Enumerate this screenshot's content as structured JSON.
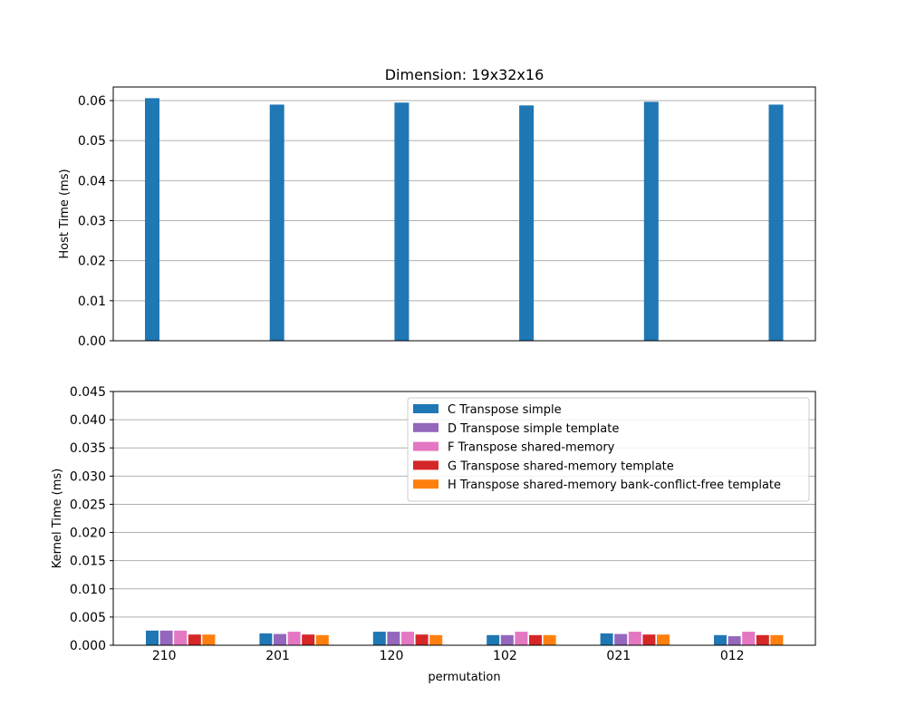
{
  "chart_data": [
    {
      "type": "bar",
      "title": "Dimension: 19x32x16",
      "xlabel": "",
      "ylabel": "Host Time (ms)",
      "ylim": [
        0,
        0.0634
      ],
      "yticks": [
        "0.00",
        "0.01",
        "0.02",
        "0.03",
        "0.04",
        "0.05",
        "0.06"
      ],
      "grid": "y",
      "categories": [
        "210",
        "201",
        "120",
        "102",
        "021",
        "012"
      ],
      "show_category_labels": false,
      "series": [
        {
          "color": "#1f77b4",
          "values": [
            0.0606,
            0.059,
            0.0595,
            0.0588,
            0.0597,
            0.059
          ]
        }
      ]
    },
    {
      "type": "bar",
      "title": "",
      "xlabel": "permutation",
      "ylabel": "Kernel Time (ms)",
      "ylim": [
        0,
        0.045
      ],
      "yticks": [
        "0.000",
        "0.005",
        "0.010",
        "0.015",
        "0.020",
        "0.025",
        "0.030",
        "0.035",
        "0.040",
        "0.045"
      ],
      "grid": "y",
      "legend": "top-right",
      "categories": [
        "210",
        "201",
        "120",
        "102",
        "021",
        "012"
      ],
      "show_category_labels": true,
      "series": [
        {
          "name": "C Transpose simple",
          "color": "#1f77b4",
          "values": [
            0.0026,
            0.0021,
            0.0024,
            0.0018,
            0.0021,
            0.0018
          ]
        },
        {
          "name": "D Transpose simple template",
          "color": "#9467bd",
          "values": [
            0.0026,
            0.002,
            0.0024,
            0.0018,
            0.002,
            0.0016
          ]
        },
        {
          "name": "F Transpose shared-memory",
          "color": "#e377c2",
          "values": [
            0.0026,
            0.0024,
            0.0024,
            0.0024,
            0.0024,
            0.0024
          ]
        },
        {
          "name": "G Transpose shared-memory template",
          "color": "#d62728",
          "values": [
            0.0019,
            0.0019,
            0.0019,
            0.0018,
            0.0019,
            0.0018
          ]
        },
        {
          "name": "H Transpose shared-memory bank-conflict-free template",
          "color": "#ff7f0e",
          "values": [
            0.0019,
            0.0018,
            0.0018,
            0.0018,
            0.0019,
            0.0018
          ]
        }
      ]
    }
  ]
}
